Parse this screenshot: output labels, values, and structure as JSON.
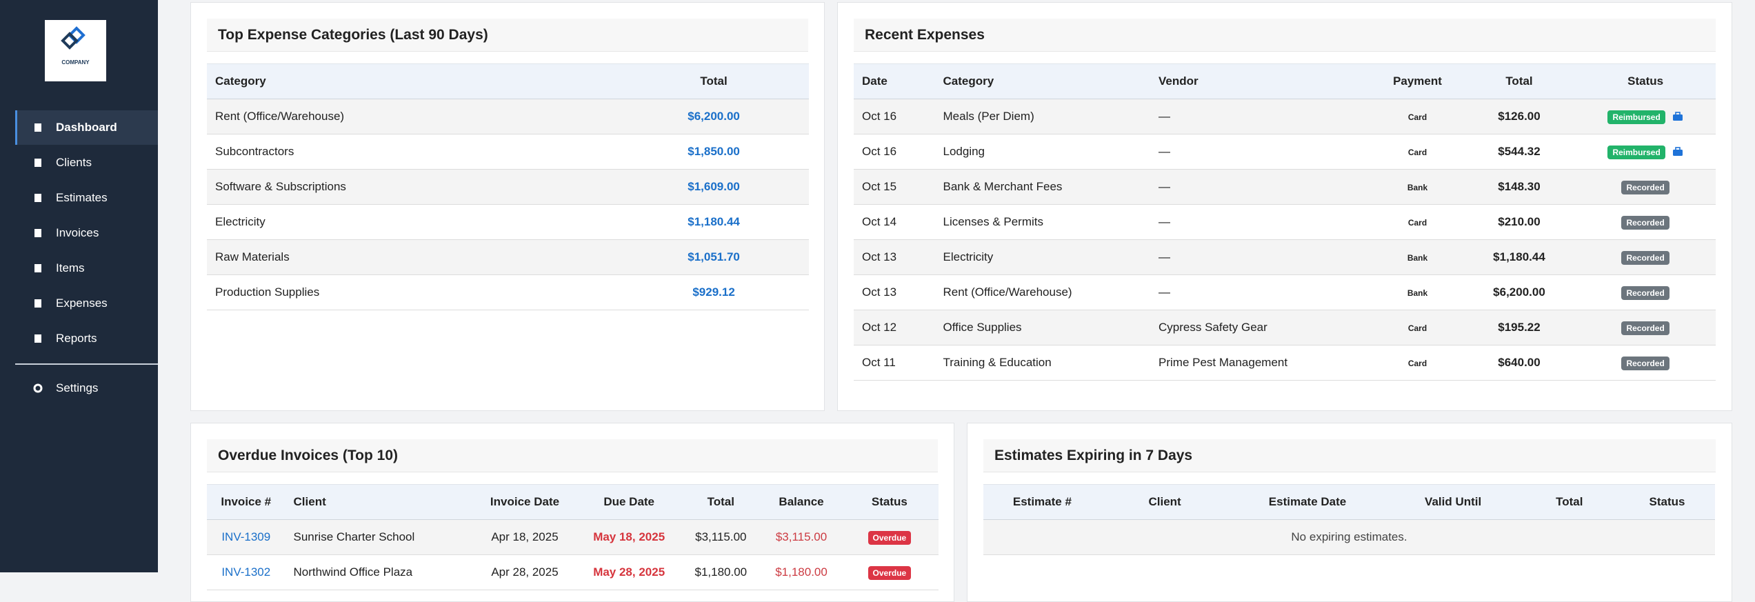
{
  "sidebar": {
    "logo": "COMPANY",
    "nav": [
      "Dashboard",
      "Clients",
      "Estimates",
      "Invoices",
      "Items",
      "Expenses",
      "Reports"
    ],
    "settings": "Settings"
  },
  "top_categories": {
    "title": "Top Expense Categories (Last 90 Days)",
    "columns": [
      "Category",
      "Total"
    ],
    "rows": [
      [
        "Rent (Office/Warehouse)",
        "$6,200.00"
      ],
      [
        "Subcontractors",
        "$1,850.00"
      ],
      [
        "Software & Subscriptions",
        "$1,609.00"
      ],
      [
        "Electricity",
        "$1,180.44"
      ],
      [
        "Raw Materials",
        "$1,051.70"
      ],
      [
        "Production Supplies",
        "$929.12"
      ]
    ]
  },
  "recent_expenses": {
    "title": "Recent Expenses",
    "columns": [
      "Date",
      "Category",
      "Vendor",
      "Payment",
      "Total",
      "Status"
    ],
    "rows": [
      [
        "Oct 16",
        "Meals (Per Diem)",
        "—",
        "Card",
        "$126.00",
        "Reimbursed"
      ],
      [
        "Oct 16",
        "Lodging",
        "—",
        "Card",
        "$544.32",
        "Reimbursed"
      ],
      [
        "Oct 15",
        "Bank & Merchant Fees",
        "—",
        "Bank",
        "$148.30",
        "Recorded"
      ],
      [
        "Oct 14",
        "Licenses & Permits",
        "—",
        "Card",
        "$210.00",
        "Recorded"
      ],
      [
        "Oct 13",
        "Electricity",
        "—",
        "Bank",
        "$1,180.44",
        "Recorded"
      ],
      [
        "Oct 13",
        "Rent (Office/Warehouse)",
        "—",
        "Bank",
        "$6,200.00",
        "Recorded"
      ],
      [
        "Oct 12",
        "Office Supplies",
        "Cypress Safety Gear",
        "Card",
        "$195.22",
        "Recorded"
      ],
      [
        "Oct 11",
        "Training & Education",
        "Prime Pest Management",
        "Card",
        "$640.00",
        "Recorded"
      ]
    ]
  },
  "overdue_invoices": {
    "title": "Overdue Invoices (Top 10)",
    "columns": [
      "Invoice #",
      "Client",
      "Invoice Date",
      "Due Date",
      "Total",
      "Balance",
      "Status"
    ],
    "rows": [
      [
        "INV-1309",
        "Sunrise Charter School",
        "Apr 18, 2025",
        "May 18, 2025",
        "$3,115.00",
        "$3,115.00",
        "Overdue"
      ],
      [
        "INV-1302",
        "Northwind Office Plaza",
        "Apr 28, 2025",
        "May 28, 2025",
        "$1,180.00",
        "$1,180.00",
        "Overdue"
      ]
    ]
  },
  "expiring_estimates": {
    "title": "Estimates Expiring in 7 Days",
    "columns": [
      "Estimate #",
      "Client",
      "Estimate Date",
      "Valid Until",
      "Total",
      "Status"
    ],
    "empty_message": "No expiring estimates."
  }
}
